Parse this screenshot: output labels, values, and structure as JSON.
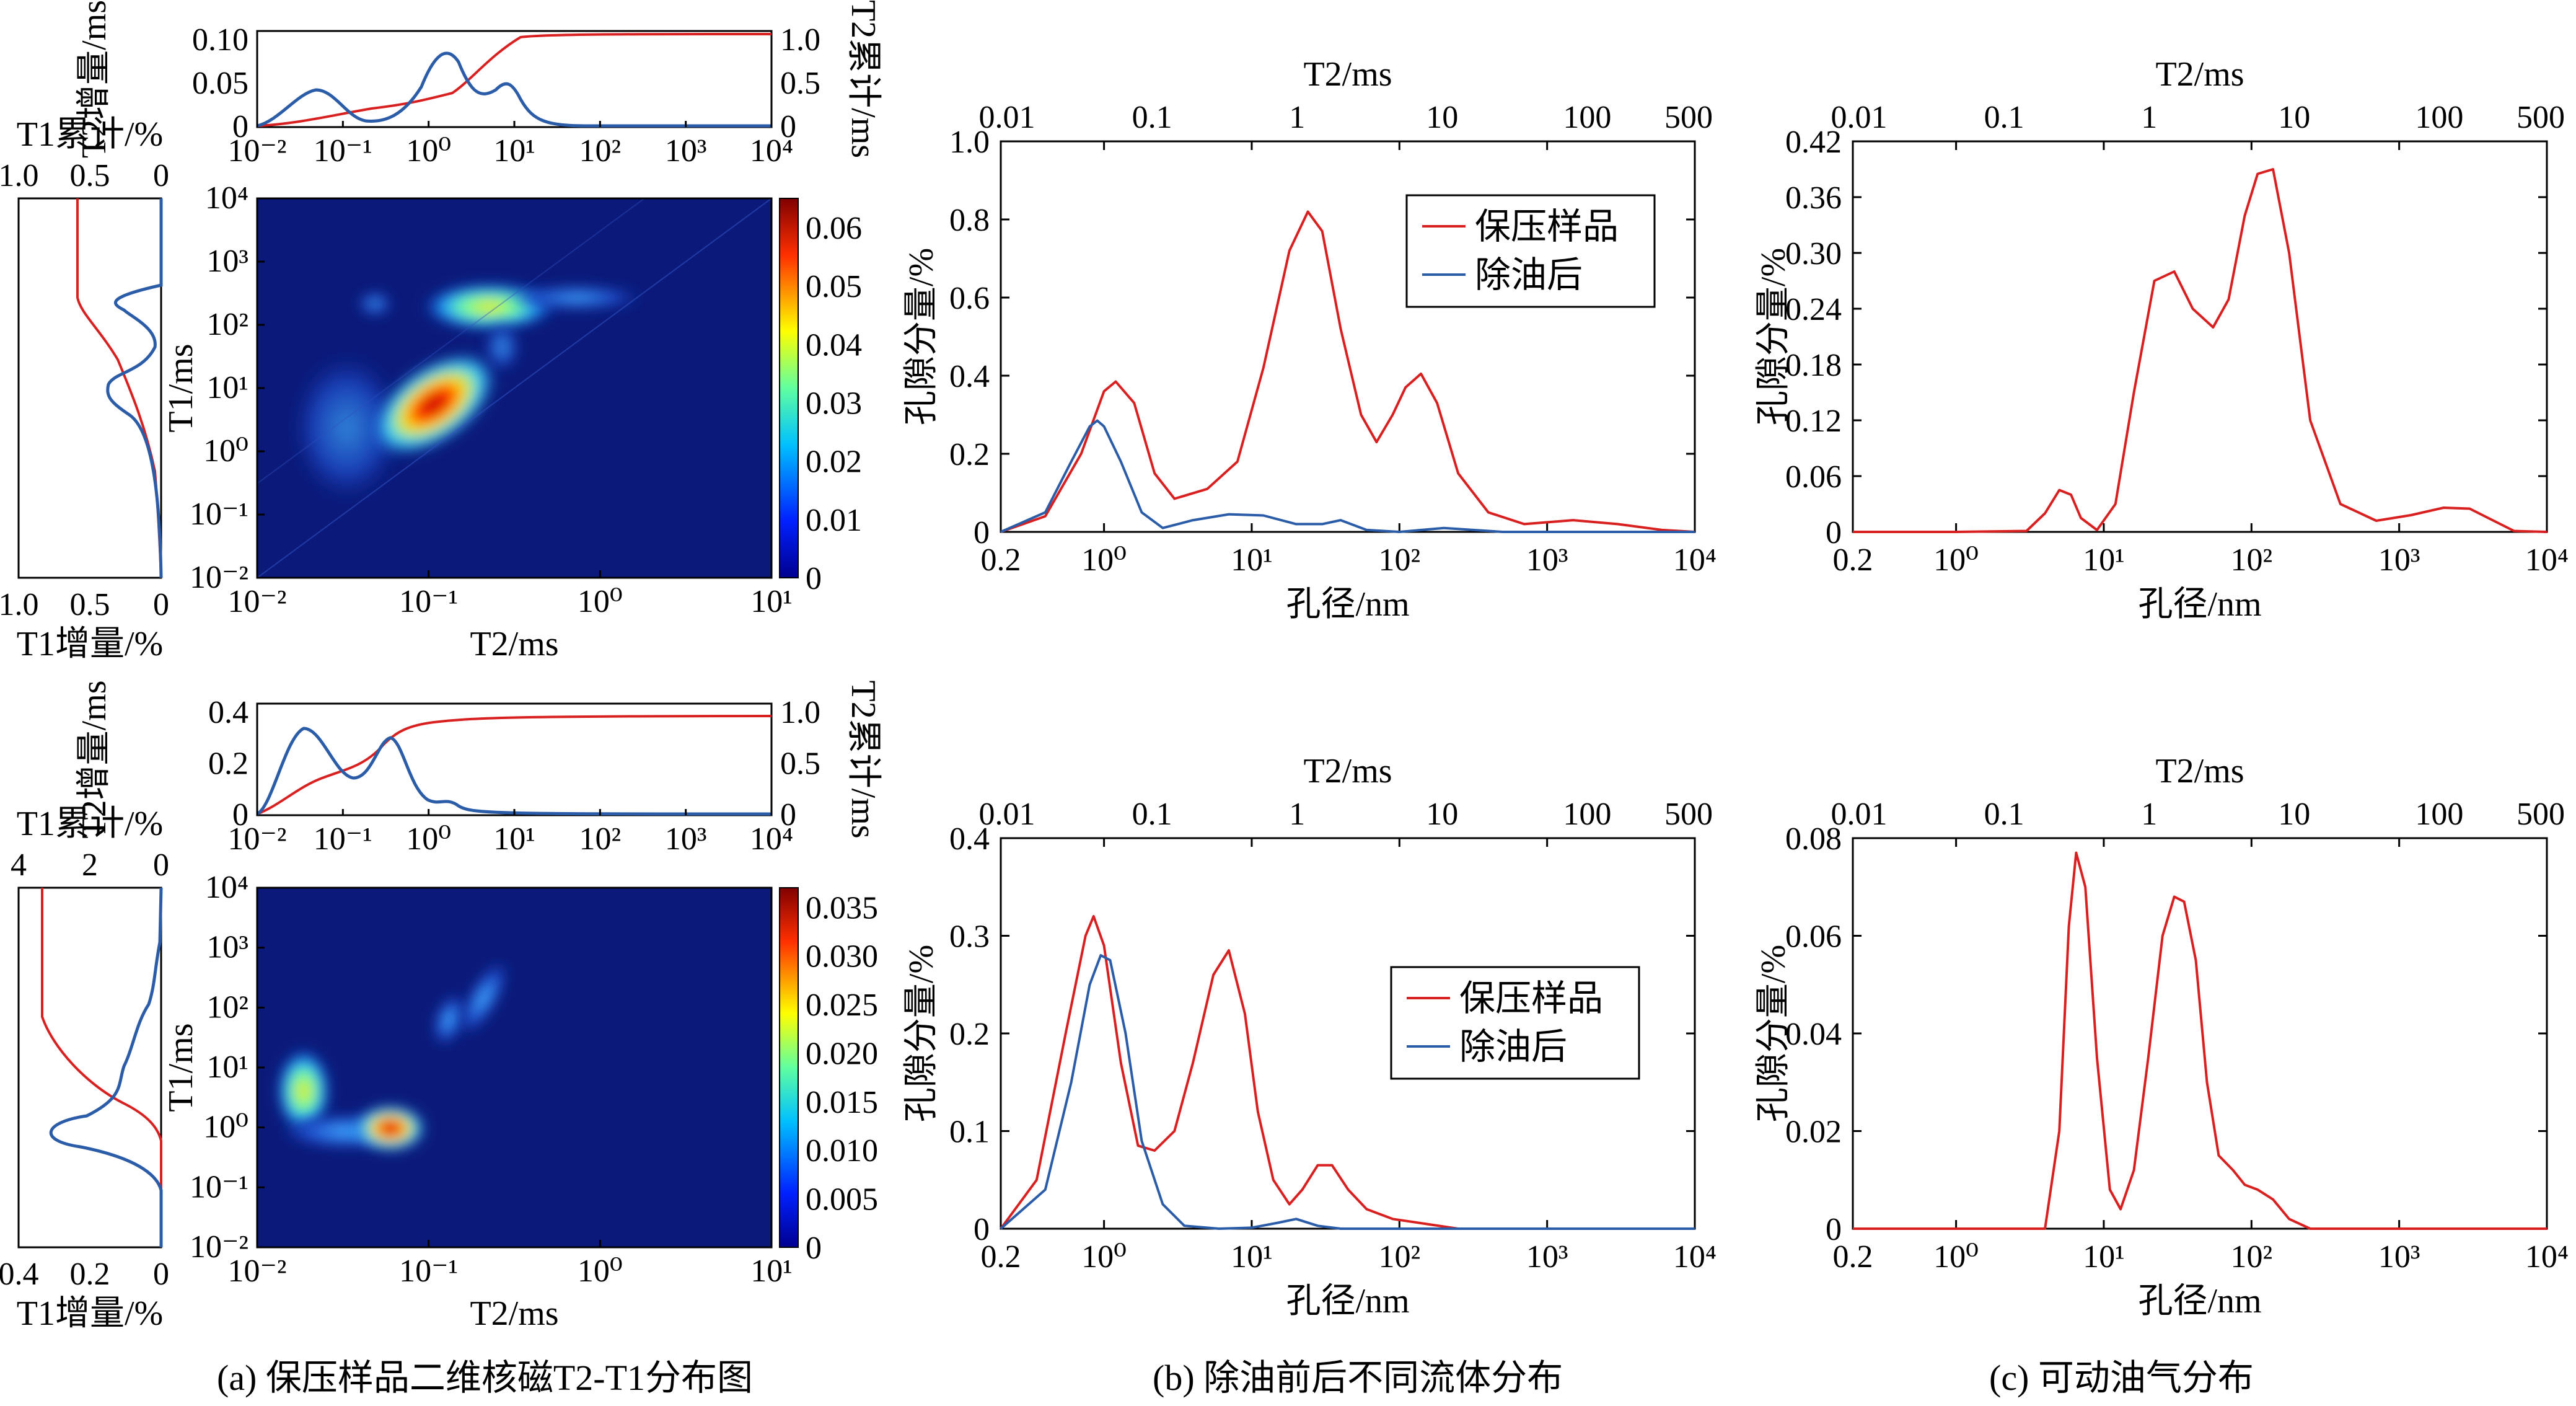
{
  "colors": {
    "red": "#d92020",
    "blue": "#2b5ca8",
    "heat_bg": "#0b1a7a"
  },
  "captions": {
    "a": "(a) 保压样品二维核磁T2-T1分布图",
    "b": "(b) 除油前后不同流体分布",
    "c": "(c) 可动油气分布"
  },
  "labels": {
    "t2_ms": "T2/ms",
    "t1_ms": "T1/ms",
    "pore": "孔径/nm",
    "porosity": "孔隙分量/%",
    "t2_incr": "T2增量/ms",
    "t2_cum": "T2累计/ms",
    "t1_cum": "T1累计/%",
    "t1_incr": "T1增量/%"
  },
  "legend": {
    "sample": "保压样品",
    "after": "除油后"
  },
  "ticks": {
    "log_t2_top": [
      "10⁻²",
      "10⁻¹",
      "10⁰",
      "10¹",
      "10²",
      "10³",
      "10⁴"
    ],
    "log_t1": [
      "10⁻²",
      "10⁻¹",
      "10⁰",
      "10¹",
      "10²",
      "10³",
      "10⁴"
    ],
    "log_t2_heat": [
      "10⁻²",
      "10⁻¹",
      "10⁰",
      "10¹"
    ],
    "pore": [
      "0.2",
      "10⁰",
      "10¹",
      "10²",
      "10³",
      "10⁴"
    ],
    "t2_top": [
      "0.01",
      "0.1",
      "1",
      "10",
      "100",
      "500"
    ]
  },
  "chart_data": [
    {
      "type": "heatmap",
      "panel": "a-top",
      "xlabel": "T2/ms",
      "ylabel": "T1/ms",
      "xlim": [
        0.01,
        10
      ],
      "ylim": [
        0.01,
        10000
      ],
      "colorbar": {
        "ticks": [
          "0",
          "0.01",
          "0.02",
          "0.03",
          "0.04",
          "0.05",
          "0.06"
        ],
        "range": [
          0,
          0.065
        ]
      },
      "t2_incr": {
        "ylim": [
          0,
          0.1
        ],
        "yticks": [
          "0",
          "0.05",
          "0.10"
        ],
        "cum_ticks": [
          "0",
          "0.5",
          "1.0"
        ]
      },
      "t1_side": {
        "cum_ticks": [
          "1.0",
          "0.5",
          "0"
        ],
        "incr_ticks": [
          "1.0",
          "0.5",
          "0"
        ]
      }
    },
    {
      "type": "heatmap",
      "panel": "a-bottom",
      "xlabel": "T2/ms",
      "ylabel": "T1/ms",
      "xlim": [
        0.01,
        10
      ],
      "ylim": [
        0.01,
        10000
      ],
      "colorbar": {
        "ticks": [
          "0",
          "0.005",
          "0.010",
          "0.015",
          "0.020",
          "0.025",
          "0.030",
          "0.035"
        ],
        "range": [
          0,
          0.037
        ]
      },
      "t2_incr": {
        "ylim": [
          0,
          0.4
        ],
        "yticks": [
          "0",
          "0.2",
          "0.4"
        ],
        "cum_ticks": [
          "0",
          "0.5",
          "1.0"
        ]
      },
      "t1_side": {
        "cum_ticks": [
          "4",
          "2",
          "0"
        ],
        "incr_ticks": [
          "0.4",
          "0.2",
          "0"
        ]
      }
    },
    {
      "type": "line",
      "panel": "b-top",
      "xlabel": "孔径/nm",
      "ylabel": "孔隙分量/%",
      "xlim": [
        0.2,
        10000
      ],
      "ylim": [
        0,
        1.0
      ],
      "yticks": [
        "0",
        "0.2",
        "0.4",
        "0.6",
        "0.8",
        "1.0"
      ],
      "series": [
        {
          "name": "保压样品",
          "color": "red",
          "x": [
            0.2,
            0.4,
            0.7,
            1.0,
            1.2,
            1.6,
            2.2,
            3,
            5,
            8,
            12,
            18,
            24,
            30,
            40,
            55,
            70,
            90,
            110,
            140,
            180,
            250,
            400,
            700,
            1500,
            3000,
            6000,
            10000
          ],
          "y": [
            0,
            0.04,
            0.2,
            0.36,
            0.385,
            0.33,
            0.15,
            0.085,
            0.11,
            0.18,
            0.42,
            0.72,
            0.82,
            0.77,
            0.52,
            0.3,
            0.23,
            0.3,
            0.37,
            0.405,
            0.33,
            0.15,
            0.05,
            0.02,
            0.03,
            0.02,
            0.005,
            0
          ]
        },
        {
          "name": "除油后",
          "color": "blue",
          "x": [
            0.2,
            0.4,
            0.6,
            0.8,
            0.9,
            1.0,
            1.3,
            1.8,
            2.5,
            4,
            7,
            12,
            20,
            30,
            40,
            60,
            100,
            200,
            500,
            1000,
            10000
          ],
          "y": [
            0,
            0.05,
            0.18,
            0.27,
            0.285,
            0.27,
            0.18,
            0.05,
            0.01,
            0.03,
            0.045,
            0.042,
            0.02,
            0.02,
            0.03,
            0.005,
            0,
            0.01,
            0,
            0,
            0
          ]
        }
      ]
    },
    {
      "type": "line",
      "panel": "c-top",
      "xlabel": "孔径/nm",
      "ylabel": "孔隙分量/%",
      "xlim": [
        0.2,
        10000
      ],
      "ylim": [
        0,
        0.42
      ],
      "yticks": [
        "0",
        "0.06",
        "0.12",
        "0.18",
        "0.24",
        "0.30",
        "0.36",
        "0.42"
      ],
      "series": [
        {
          "name": "",
          "color": "red",
          "x": [
            0.2,
            1,
            3,
            4,
            5,
            6,
            7,
            9,
            12,
            16,
            22,
            30,
            40,
            55,
            70,
            90,
            110,
            140,
            180,
            250,
            400,
            700,
            1200,
            2000,
            3000,
            4000,
            6000,
            10000
          ],
          "y": [
            0,
            0,
            0.001,
            0.02,
            0.045,
            0.04,
            0.015,
            0.002,
            0.03,
            0.15,
            0.27,
            0.28,
            0.24,
            0.22,
            0.25,
            0.34,
            0.385,
            0.39,
            0.3,
            0.12,
            0.03,
            0.012,
            0.018,
            0.026,
            0.025,
            0.015,
            0.001,
            0
          ]
        }
      ]
    },
    {
      "type": "line",
      "panel": "b-bottom",
      "xlabel": "孔径/nm",
      "ylabel": "孔隙分量/%",
      "xlim": [
        0.2,
        10000
      ],
      "ylim": [
        0,
        0.4
      ],
      "yticks": [
        "0",
        "0.1",
        "0.2",
        "0.3",
        "0.4"
      ],
      "series": [
        {
          "name": "保压样品",
          "color": "red",
          "x": [
            0.2,
            0.35,
            0.55,
            0.75,
            0.85,
            1.0,
            1.3,
            1.7,
            2.2,
            3,
            4,
            5.5,
            7,
            9,
            11,
            14,
            18,
            22,
            28,
            35,
            45,
            60,
            90,
            150,
            250,
            10000
          ],
          "y": [
            0,
            0.05,
            0.2,
            0.3,
            0.32,
            0.29,
            0.17,
            0.085,
            0.08,
            0.1,
            0.17,
            0.26,
            0.285,
            0.22,
            0.12,
            0.05,
            0.025,
            0.04,
            0.065,
            0.065,
            0.04,
            0.02,
            0.01,
            0.005,
            0,
            0
          ]
        },
        {
          "name": "除油后",
          "color": "blue",
          "x": [
            0.2,
            0.4,
            0.6,
            0.8,
            0.95,
            1.1,
            1.4,
            1.8,
            2.5,
            3.5,
            6,
            10,
            15,
            20,
            28,
            40,
            100,
            10000
          ],
          "y": [
            0,
            0.04,
            0.15,
            0.25,
            0.28,
            0.275,
            0.2,
            0.09,
            0.025,
            0.003,
            0,
            0.001,
            0.006,
            0.01,
            0.003,
            0,
            0,
            0
          ]
        }
      ]
    },
    {
      "type": "line",
      "panel": "c-bottom",
      "xlabel": "孔径/nm",
      "ylabel": "孔隙分量/%",
      "xlim": [
        0.2,
        10000
      ],
      "ylim": [
        0,
        0.08
      ],
      "yticks": [
        "0",
        "0.02",
        "0.04",
        "0.06",
        "0.08"
      ],
      "series": [
        {
          "name": "",
          "color": "red",
          "x": [
            0.2,
            3,
            4,
            5,
            5.8,
            6.5,
            7.5,
            9,
            11,
            13,
            16,
            20,
            25,
            30,
            35,
            42,
            50,
            60,
            75,
            90,
            110,
            140,
            180,
            250,
            10000
          ],
          "y": [
            0,
            0,
            0,
            0.02,
            0.062,
            0.077,
            0.07,
            0.035,
            0.008,
            0.004,
            0.012,
            0.035,
            0.06,
            0.068,
            0.067,
            0.055,
            0.03,
            0.015,
            0.012,
            0.009,
            0.008,
            0.006,
            0.002,
            0,
            0
          ]
        }
      ]
    }
  ]
}
